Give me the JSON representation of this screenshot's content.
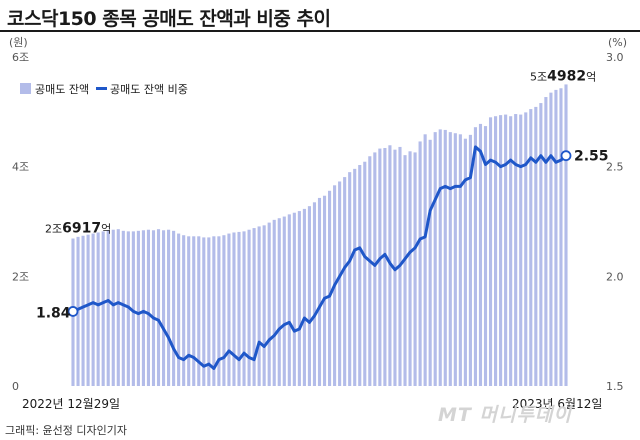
{
  "title": "코스닥150 종목 공매도 잔액과 비중 추이",
  "credit": "그래픽: 윤선정 디자인기자",
  "watermark": "MT 머니투데이",
  "colors": {
    "bar": "#b3bce9",
    "line": "#1f57c9",
    "text": "#1a1a1a",
    "axis": "#555555"
  },
  "chart_data": {
    "type": "bar+line",
    "left_axis": {
      "unit": "(원)",
      "ticks": [
        "6조",
        "4조",
        "2조",
        "0"
      ],
      "tick_values": [
        6,
        4,
        2,
        0
      ],
      "range": [
        0,
        6
      ]
    },
    "right_axis": {
      "unit": "(%)",
      "ticks": [
        "3.0",
        "2.5",
        "2.0",
        "1.5"
      ],
      "tick_values": [
        3.0,
        2.5,
        2.0,
        1.5
      ],
      "range": [
        1.5,
        3.0
      ]
    },
    "x_start_label": "2022년 12월29일",
    "x_end_label": "2023년 6월12일",
    "legend": [
      "공매도 잔액",
      "공매도 잔액 비중"
    ],
    "series": [
      {
        "name": "공매도 잔액",
        "unit": "조원",
        "axis": "left",
        "values": [
          2.69,
          2.72,
          2.74,
          2.76,
          2.78,
          2.8,
          2.82,
          2.84,
          2.85,
          2.86,
          2.83,
          2.82,
          2.82,
          2.83,
          2.84,
          2.85,
          2.84,
          2.86,
          2.84,
          2.85,
          2.83,
          2.78,
          2.75,
          2.73,
          2.73,
          2.73,
          2.71,
          2.71,
          2.73,
          2.73,
          2.75,
          2.78,
          2.8,
          2.81,
          2.82,
          2.85,
          2.88,
          2.91,
          2.93,
          2.98,
          3.03,
          3.06,
          3.09,
          3.13,
          3.16,
          3.19,
          3.23,
          3.28,
          3.35,
          3.43,
          3.47,
          3.56,
          3.66,
          3.73,
          3.81,
          3.9,
          3.96,
          4.03,
          4.09,
          4.19,
          4.26,
          4.33,
          4.34,
          4.39,
          4.31,
          4.36,
          4.21,
          4.28,
          4.26,
          4.46,
          4.59,
          4.49,
          4.63,
          4.68,
          4.67,
          4.63,
          4.61,
          4.59,
          4.51,
          4.58,
          4.72,
          4.78,
          4.74,
          4.9,
          4.92,
          4.94,
          4.95,
          4.92,
          4.96,
          4.95,
          4.99,
          5.05,
          5.09,
          5.16,
          5.27,
          5.35,
          5.4,
          5.43,
          5.5
        ],
        "labels": [
          {
            "index": 0,
            "prefix": "2조",
            "main": "6917",
            "suffix": "억"
          },
          {
            "index": 98,
            "prefix": "5조",
            "main": "4982",
            "suffix": "억"
          }
        ]
      },
      {
        "name": "공매도 잔액 비중",
        "unit": "%",
        "axis": "right",
        "values": [
          1.84,
          1.85,
          1.86,
          1.87,
          1.88,
          1.87,
          1.88,
          1.89,
          1.87,
          1.88,
          1.87,
          1.86,
          1.84,
          1.83,
          1.84,
          1.83,
          1.81,
          1.8,
          1.76,
          1.72,
          1.67,
          1.63,
          1.62,
          1.64,
          1.63,
          1.61,
          1.59,
          1.6,
          1.58,
          1.62,
          1.63,
          1.66,
          1.64,
          1.62,
          1.65,
          1.63,
          1.62,
          1.7,
          1.68,
          1.71,
          1.73,
          1.76,
          1.78,
          1.79,
          1.75,
          1.76,
          1.81,
          1.79,
          1.82,
          1.86,
          1.9,
          1.91,
          1.96,
          2.0,
          2.04,
          2.07,
          2.12,
          2.13,
          2.09,
          2.07,
          2.05,
          2.08,
          2.1,
          2.06,
          2.03,
          2.05,
          2.08,
          2.11,
          2.13,
          2.17,
          2.18,
          2.3,
          2.35,
          2.4,
          2.41,
          2.4,
          2.41,
          2.41,
          2.44,
          2.45,
          2.59,
          2.57,
          2.51,
          2.53,
          2.52,
          2.5,
          2.51,
          2.53,
          2.51,
          2.5,
          2.51,
          2.54,
          2.52,
          2.55,
          2.52,
          2.55,
          2.52,
          2.53,
          2.55
        ],
        "labels": [
          {
            "index": 0,
            "text": "1.84"
          },
          {
            "index": 98,
            "text": "2.55"
          }
        ]
      }
    ]
  }
}
